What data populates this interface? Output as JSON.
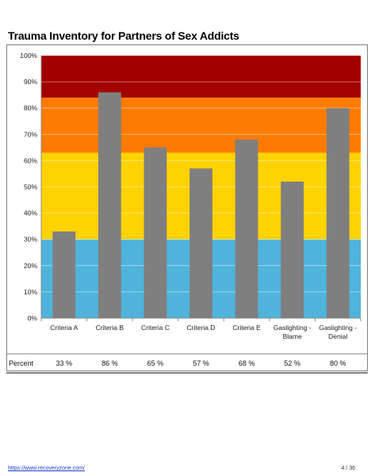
{
  "footer": {
    "link_text": "https://www.recoveryzone.com/",
    "page_number": "4 / 36"
  },
  "colors": {
    "bar": "#7f7f7f",
    "band_low": "#4fb3dc",
    "band_mid": "#ffd200",
    "band_high": "#ff7b00",
    "band_top": "#a30000"
  },
  "chart_data": {
    "type": "bar",
    "title": "Trauma Inventory for Partners of Sex Addicts",
    "xlabel": "",
    "ylabel": "",
    "ylim": [
      0,
      100
    ],
    "yticks": [
      0,
      10,
      20,
      30,
      40,
      50,
      60,
      70,
      80,
      90,
      100
    ],
    "ytick_labels": [
      "0%",
      "10%",
      "20%",
      "30%",
      "40%",
      "50%",
      "60%",
      "70%",
      "80%",
      "90%",
      "100%"
    ],
    "grid": true,
    "legend": "none",
    "categories": [
      [
        "Criteria A"
      ],
      [
        "Criteria B"
      ],
      [
        "Criteria C"
      ],
      [
        "Criteria D"
      ],
      [
        "Criteria E"
      ],
      [
        "Gaslighting -",
        "Blame"
      ],
      [
        "Gaslighting -",
        "Denial"
      ]
    ],
    "values": [
      33,
      86,
      65,
      57,
      68,
      52,
      80
    ],
    "background_bands": [
      {
        "from": 0,
        "to": 30,
        "color": "#4fb3dc"
      },
      {
        "from": 30,
        "to": 63,
        "color": "#ffd200"
      },
      {
        "from": 63,
        "to": 84,
        "color": "#ff7b00"
      },
      {
        "from": 84,
        "to": 100,
        "color": "#a30000"
      }
    ],
    "table": {
      "row_label": "Percent",
      "values": [
        "33 %",
        "86 %",
        "65 %",
        "57 %",
        "68 %",
        "52 %",
        "80 %"
      ]
    }
  }
}
